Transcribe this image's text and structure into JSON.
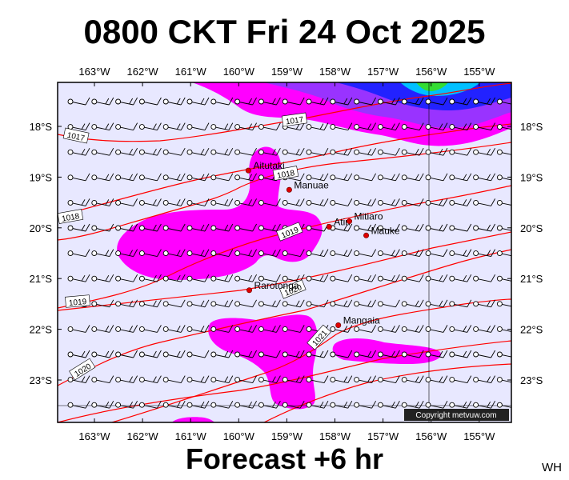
{
  "title": "0800 CKT Fri 24 Oct 2025",
  "footer": "Forecast +6 hr",
  "corner_tag": "WH",
  "copyright": "Copyright metvuw.com",
  "lon_labels": [
    "163°W",
    "162°W",
    "161°W",
    "160°W",
    "159°W",
    "158°W",
    "157°W",
    "156°W",
    "155°W"
  ],
  "lat_labels": [
    "18°S",
    "19°S",
    "20°S",
    "21°S",
    "22°S",
    "23°S"
  ],
  "places": [
    {
      "name": "Aitutaki",
      "lon": -159.8,
      "lat": -18.87
    },
    {
      "name": "Manuae",
      "lon": -158.95,
      "lat": -19.25
    },
    {
      "name": "Atiu",
      "lon": -158.12,
      "lat": -19.98
    },
    {
      "name": "Mitiaro",
      "lon": -157.7,
      "lat": -19.87
    },
    {
      "name": "Mauke",
      "lon": -157.35,
      "lat": -20.15
    },
    {
      "name": "Rarotonga",
      "lon": -159.78,
      "lat": -21.23
    },
    {
      "name": "Mangaia",
      "lon": -157.93,
      "lat": -21.92
    }
  ],
  "isobars": [
    {
      "label": "1017"
    },
    {
      "label": "1017"
    },
    {
      "label": "1018"
    },
    {
      "label": "1018"
    },
    {
      "label": "1019"
    },
    {
      "label": "1019"
    },
    {
      "label": "1020"
    },
    {
      "label": "1020"
    },
    {
      "label": "1021"
    }
  ],
  "colors": {
    "map_background": "#e8e8ff",
    "rain_light": "#ff00ff",
    "rain_medium": "#9933ff",
    "rain_heavy": "#2222ff",
    "rain_very_heavy": "#00c0ff",
    "isobar": "#ff0000",
    "place_marker": "#dd0000"
  }
}
